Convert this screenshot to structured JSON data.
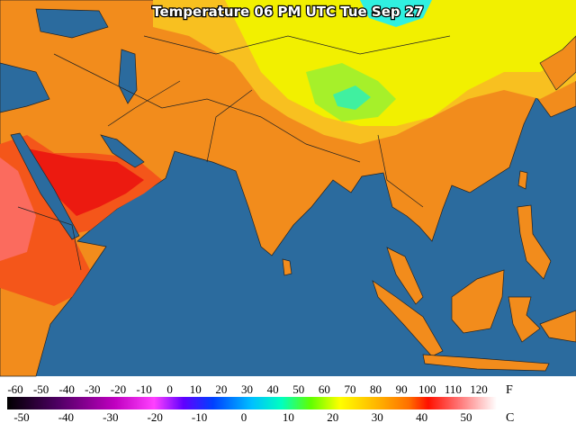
{
  "title": "Temperature 06 PM UTC Tue Sep 27",
  "legend": {
    "fahrenheit": {
      "unit": "F",
      "ticks": [
        -60,
        -50,
        -40,
        -30,
        -20,
        -10,
        0,
        10,
        20,
        30,
        40,
        50,
        60,
        70,
        80,
        90,
        100,
        110,
        120
      ]
    },
    "celsius": {
      "unit": "C",
      "ticks": [
        -50,
        -40,
        -30,
        -20,
        -10,
        0,
        10,
        20,
        30,
        40,
        50
      ]
    }
  }
}
